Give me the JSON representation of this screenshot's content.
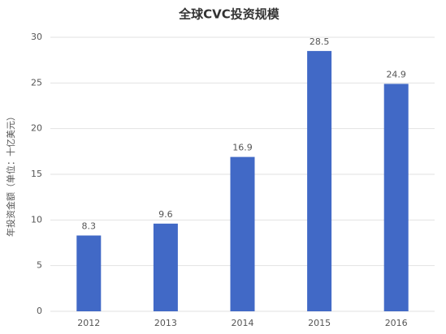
{
  "chart_data": {
    "type": "bar",
    "title": "全球CVC投资规模",
    "y_label": "年投资金额（单位：十亿美元）",
    "categories": [
      "2012",
      "2013",
      "2014",
      "2015",
      "2016"
    ],
    "values": [
      8.3,
      9.6,
      16.9,
      28.5,
      24.9
    ],
    "color": "#4169c6",
    "ylim": [
      0,
      30
    ],
    "yticks": [
      0,
      5,
      10,
      15,
      20,
      25,
      30
    ],
    "grid": true
  }
}
